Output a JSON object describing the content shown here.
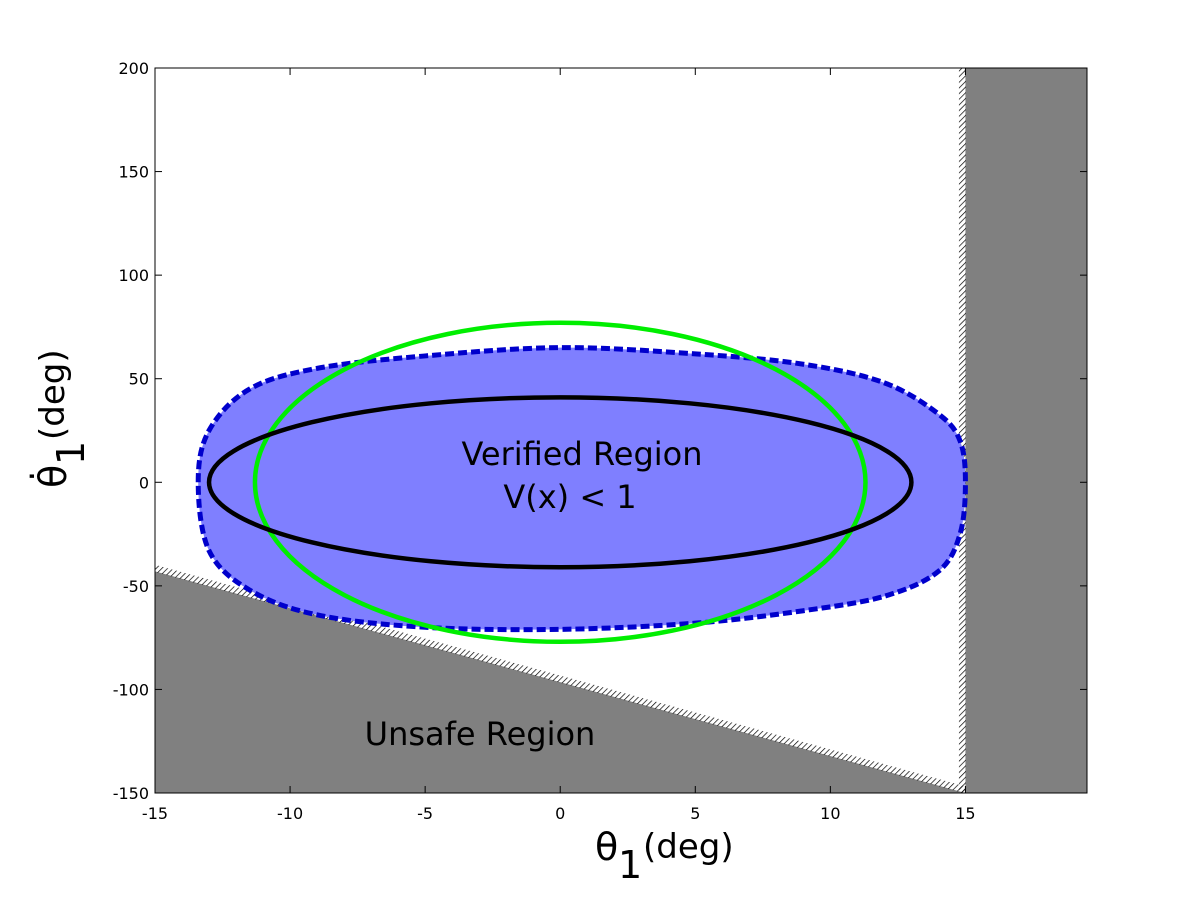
{
  "chart_data": {
    "type": "area",
    "xlabel_symbol": "θ",
    "xlabel_sub": "1",
    "xlabel_unit": "(deg)",
    "ylabel_symbol": "θ̇",
    "ylabel_sub": "1",
    "ylabel_unit": "(deg)",
    "xlim": [
      -15,
      19.5
    ],
    "ylim": [
      -150,
      200
    ],
    "xticks": [
      -15,
      -10,
      -5,
      0,
      5,
      10,
      15
    ],
    "yticks": [
      -150,
      -100,
      -50,
      0,
      50,
      100,
      150,
      200
    ],
    "grid": false,
    "annotations": {
      "verified_line1": "Verified Region",
      "verified_line2": "V(x) < 1",
      "unsafe": "Unsafe Region"
    },
    "regions": {
      "unsafe_diagonal": {
        "boundary": [
          [
            -15,
            -43
          ],
          [
            15,
            -150
          ]
        ],
        "color": "#808080"
      },
      "unsafe_vertical": {
        "x_from": 15,
        "color": "#808080"
      }
    },
    "verified_region": {
      "color": "#7f7fff",
      "edge_color": "#0000cc",
      "edge_style": "dashed",
      "boundary": [
        [
          -13.4,
          0
        ],
        [
          -13.0,
          25
        ],
        [
          -11.5,
          45
        ],
        [
          -9,
          55
        ],
        [
          -5,
          61
        ],
        [
          0,
          65
        ],
        [
          5,
          62
        ],
        [
          9,
          57
        ],
        [
          12,
          48
        ],
        [
          14,
          33
        ],
        [
          14.8,
          20
        ],
        [
          15,
          0
        ],
        [
          14.8,
          -25
        ],
        [
          14,
          -43
        ],
        [
          12,
          -55
        ],
        [
          9,
          -62
        ],
        [
          5,
          -68
        ],
        [
          0,
          -71
        ],
        [
          -5,
          -70
        ],
        [
          -9,
          -64
        ],
        [
          -11.5,
          -52
        ],
        [
          -13,
          -33
        ]
      ]
    },
    "ellipses": [
      {
        "name": "green",
        "color": "#00ee00",
        "cx": 0,
        "cy": 0,
        "rx": 11.3,
        "ry": 77
      },
      {
        "name": "black",
        "color": "#000000",
        "cx": 0,
        "cy": 0,
        "rx": 13.0,
        "ry": 41
      }
    ]
  }
}
